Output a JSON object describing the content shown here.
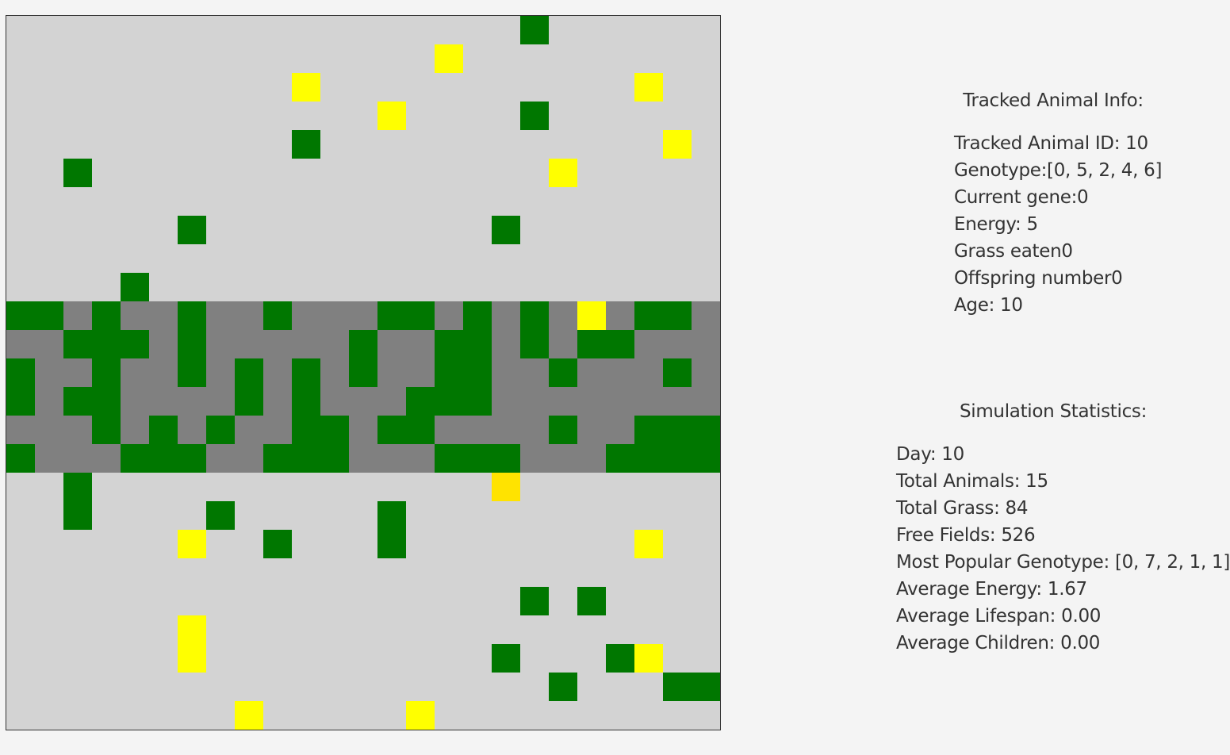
{
  "map": {
    "colors": {
      "steppe": "#d3d3d3",
      "jungle": "#808080",
      "grass": "#007700",
      "animal": "#ffff00",
      "animal_dim": "#ffe300"
    },
    "grid_columns": 25,
    "grid_rows": 25,
    "jungle_rows": [
      10,
      15
    ],
    "grass": [
      [
        18,
        0
      ],
      [
        18,
        3
      ],
      [
        10,
        4
      ],
      [
        2,
        5
      ],
      [
        6,
        7
      ],
      [
        17,
        7
      ],
      [
        4,
        9
      ],
      [
        0,
        10
      ],
      [
        1,
        10
      ],
      [
        3,
        10
      ],
      [
        6,
        10
      ],
      [
        9,
        10
      ],
      [
        13,
        10
      ],
      [
        14,
        10
      ],
      [
        16,
        10
      ],
      [
        18,
        10
      ],
      [
        22,
        10
      ],
      [
        23,
        10
      ],
      [
        2,
        11
      ],
      [
        3,
        11
      ],
      [
        4,
        11
      ],
      [
        6,
        11
      ],
      [
        12,
        11
      ],
      [
        15,
        11
      ],
      [
        16,
        11
      ],
      [
        18,
        11
      ],
      [
        20,
        11
      ],
      [
        21,
        11
      ],
      [
        0,
        12
      ],
      [
        3,
        12
      ],
      [
        6,
        12
      ],
      [
        8,
        12
      ],
      [
        10,
        12
      ],
      [
        12,
        12
      ],
      [
        15,
        12
      ],
      [
        16,
        12
      ],
      [
        19,
        12
      ],
      [
        23,
        12
      ],
      [
        0,
        13
      ],
      [
        2,
        13
      ],
      [
        3,
        13
      ],
      [
        8,
        13
      ],
      [
        10,
        13
      ],
      [
        14,
        13
      ],
      [
        15,
        13
      ],
      [
        16,
        13
      ],
      [
        3,
        14
      ],
      [
        5,
        14
      ],
      [
        7,
        14
      ],
      [
        10,
        14
      ],
      [
        11,
        14
      ],
      [
        13,
        14
      ],
      [
        14,
        14
      ],
      [
        19,
        14
      ],
      [
        22,
        14
      ],
      [
        23,
        14
      ],
      [
        24,
        14
      ],
      [
        0,
        15
      ],
      [
        4,
        15
      ],
      [
        5,
        15
      ],
      [
        6,
        15
      ],
      [
        9,
        15
      ],
      [
        10,
        15
      ],
      [
        11,
        15
      ],
      [
        15,
        15
      ],
      [
        16,
        15
      ],
      [
        17,
        15
      ],
      [
        21,
        15
      ],
      [
        22,
        15
      ],
      [
        23,
        15
      ],
      [
        24,
        15
      ],
      [
        2,
        16
      ],
      [
        2,
        17
      ],
      [
        7,
        17
      ],
      [
        13,
        17
      ],
      [
        9,
        18
      ],
      [
        13,
        18
      ],
      [
        18,
        20
      ],
      [
        20,
        20
      ],
      [
        17,
        22
      ],
      [
        21,
        22
      ],
      [
        19,
        23
      ],
      [
        23,
        23
      ],
      [
        24,
        23
      ]
    ],
    "animals": [
      [
        15,
        1,
        0
      ],
      [
        10,
        2,
        0
      ],
      [
        22,
        2,
        0
      ],
      [
        13,
        3,
        0
      ],
      [
        23,
        4,
        0
      ],
      [
        19,
        5,
        0
      ],
      [
        20,
        10,
        0
      ],
      [
        17,
        16,
        1
      ],
      [
        6,
        18,
        0
      ],
      [
        22,
        18,
        0
      ],
      [
        6,
        21,
        0
      ],
      [
        6,
        22,
        0
      ],
      [
        22,
        22,
        0
      ],
      [
        8,
        24,
        0
      ],
      [
        14,
        24,
        0
      ]
    ]
  },
  "tracked": {
    "title": "Tracked Animal Info:",
    "id": "Tracked Animal ID: 10",
    "genotype": "Genotype:[0, 5, 2, 4, 6]",
    "current_gene": "Current gene:0",
    "energy": "Energy: 5",
    "grass_eaten": "Grass eaten0",
    "offspring": "Offspring number0",
    "age": "Age: 10"
  },
  "stats": {
    "title": "Simulation Statistics:",
    "day": "Day: 10",
    "total_animals": "Total Animals: 15",
    "total_grass": "Total Grass: 84",
    "free_fields": "Free Fields: 526",
    "popular_genotype": "Most Popular Genotype: [0, 7, 2, 1, 1]",
    "avg_energy": "Average Energy: 1.67",
    "avg_lifespan": "Average Lifespan: 0.00",
    "avg_children": "Average Children: 0.00"
  }
}
